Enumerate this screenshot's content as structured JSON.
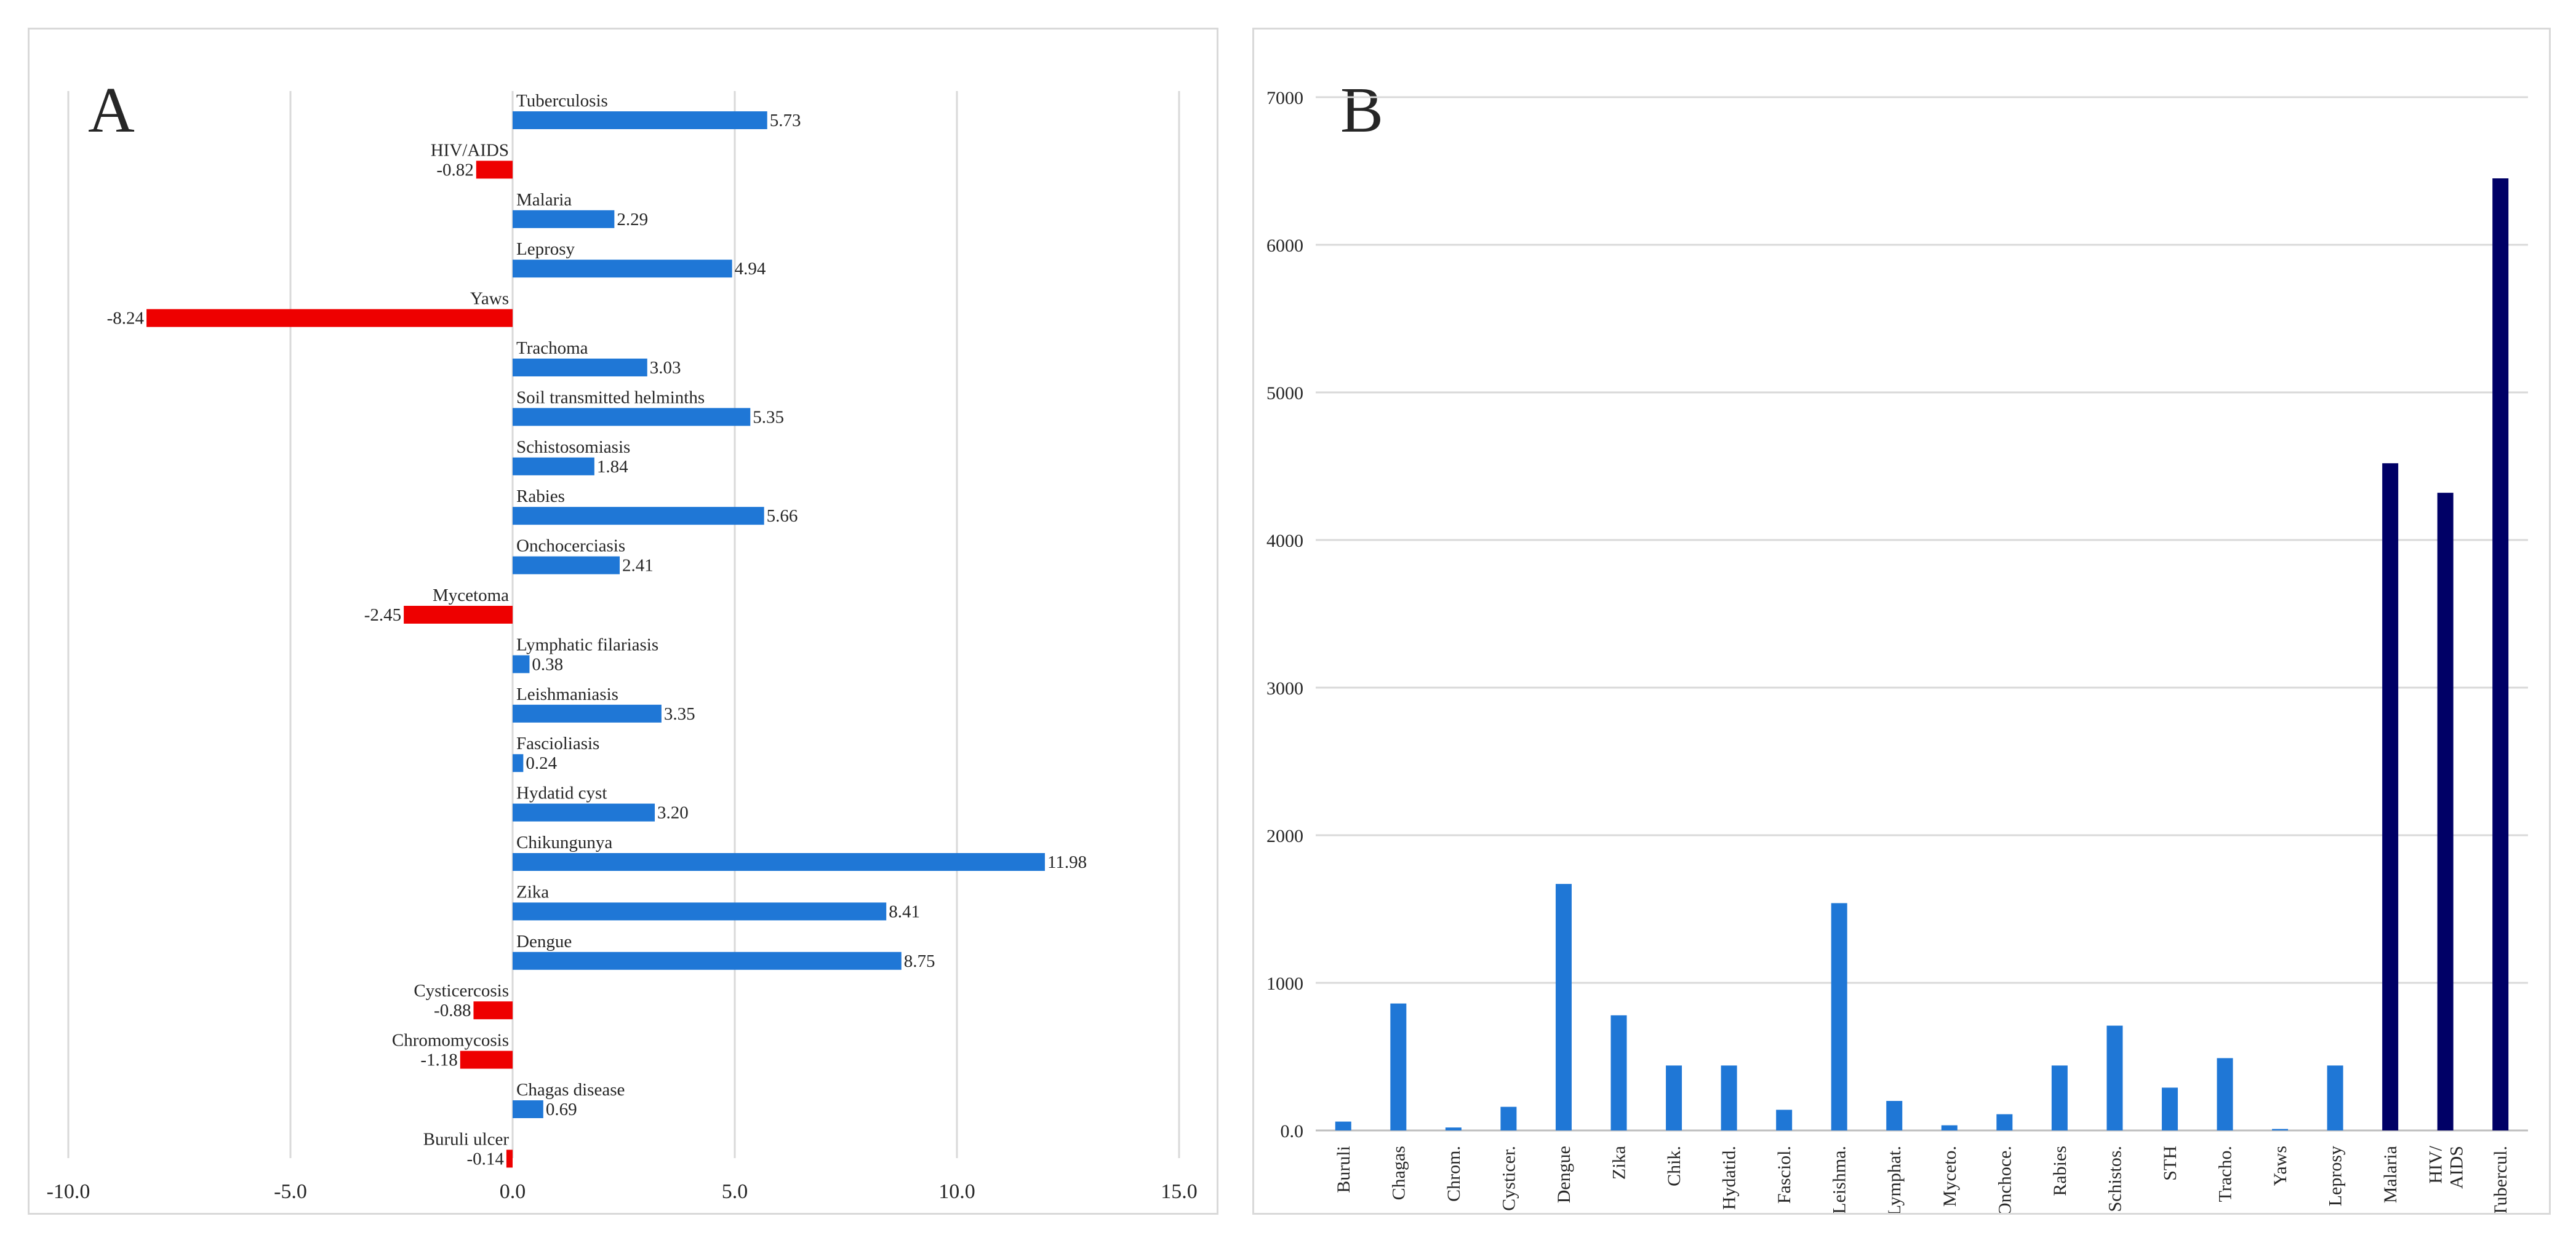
{
  "chart_data": [
    {
      "type": "bar",
      "orientation": "horizontal",
      "panel_label": "A",
      "title": "",
      "xlabel": "",
      "ylabel": "",
      "xlim": [
        -10,
        15
      ],
      "xticks": [
        "-10.0",
        "-5.0",
        "0.0",
        "5.0",
        "10.0",
        "15.0"
      ],
      "grid": true,
      "categories": [
        "Tuberculosis",
        "HIV/AIDS",
        "Malaria",
        "Leprosy",
        "Yaws",
        "Trachoma",
        "Soil transmitted helminths",
        "Schistosomiasis",
        "Rabies",
        "Onchocerciasis",
        "Mycetoma",
        "Lymphatic filariasis",
        "Leishmaniasis",
        "Fascioliasis",
        "Hydatid cyst",
        "Chikungunya",
        "Zika",
        "Dengue",
        "Cysticercosis",
        "Chromomycosis",
        "Chagas disease",
        "Buruli ulcer"
      ],
      "values": [
        5.73,
        -0.82,
        2.29,
        4.94,
        -8.24,
        3.03,
        5.35,
        1.84,
        5.66,
        2.41,
        -2.45,
        0.38,
        3.35,
        0.24,
        3.2,
        11.98,
        8.41,
        8.75,
        -0.88,
        -1.18,
        0.69,
        -0.14
      ],
      "value_labels": [
        "5.73",
        "-0.82",
        "2.29",
        "4.94",
        "-8.24",
        "3.03",
        "5.35",
        "1.84",
        "5.66",
        "2.41",
        "-2.45",
        "0.38",
        "3.35",
        "0.24",
        "3.20",
        "11.98",
        "8.41",
        "8.75",
        "-0.88",
        "-1.18",
        "0.69",
        "-0.14"
      ],
      "colors": {
        "positive": "#1f77d6",
        "negative": "#ee0000",
        "grid": "#d9d9d9"
      }
    },
    {
      "type": "bar",
      "panel_label": "B",
      "title": "",
      "xlabel": "",
      "ylabel": "",
      "ylim": [
        0,
        7000
      ],
      "yticks": [
        "0.0",
        "1000",
        "2000",
        "3000",
        "4000",
        "5000",
        "6000",
        "7000"
      ],
      "grid": true,
      "categories": [
        "Buruli",
        "Chagas",
        "Chrom.",
        "Cysticer.",
        "Dengue",
        "Zika",
        "Chik.",
        "Hydatid.",
        "Fasciol.",
        "Leishma.",
        "Lymphat.",
        "Myceto.",
        "Onchoce.",
        "Rabies",
        "Schistos.",
        "STH",
        "Tracho.",
        "Yaws",
        "Leprosy",
        "Malaria",
        "HIV/\nAIDS",
        "Tubercul."
      ],
      "values": [
        60,
        860,
        20,
        160,
        1670,
        780,
        440,
        440,
        140,
        1540,
        200,
        35,
        110,
        440,
        710,
        290,
        490,
        10,
        440,
        4520,
        4320,
        6450
      ],
      "bar_colors": [
        "#1f77d6",
        "#1f77d6",
        "#1f77d6",
        "#1f77d6",
        "#1f77d6",
        "#1f77d6",
        "#1f77d6",
        "#1f77d6",
        "#1f77d6",
        "#1f77d6",
        "#1f77d6",
        "#1f77d6",
        "#1f77d6",
        "#1f77d6",
        "#1f77d6",
        "#1f77d6",
        "#1f77d6",
        "#1f77d6",
        "#1f77d6",
        "#000066",
        "#000066",
        "#000066"
      ],
      "colors": {
        "grid": "#d9d9d9",
        "axis": "#bfbfbf"
      }
    }
  ]
}
